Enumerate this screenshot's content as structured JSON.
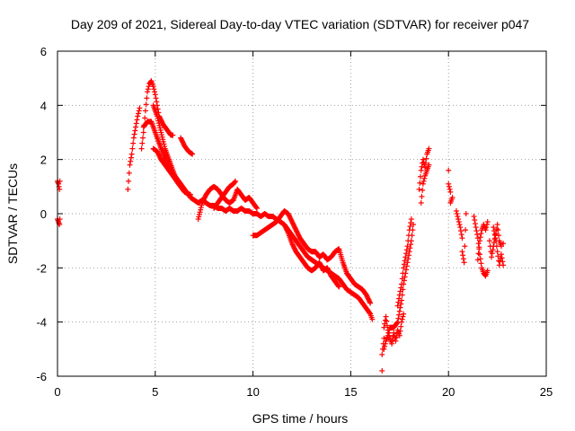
{
  "chart_data": {
    "type": "scatter",
    "title": "Day 209 of 2021, Sidereal Day-to-day VTEC variation (SDTVAR) for receiver p047",
    "xlabel": "GPS time / hours",
    "ylabel": "SDTVAR / TECUs",
    "xlim": [
      0,
      25
    ],
    "ylim": [
      -6,
      6
    ],
    "xticks": [
      0,
      5,
      10,
      15,
      20,
      25
    ],
    "yticks": [
      -6,
      -4,
      -2,
      0,
      2,
      4,
      6
    ],
    "grid": true,
    "marker": "+",
    "series_color": "#ff0000",
    "segments": [
      [
        [
          0.0,
          1.2
        ],
        [
          0.05,
          1.1
        ],
        [
          0.1,
          0.9
        ],
        [
          0.12,
          1.2
        ]
      ],
      [
        [
          0.0,
          -0.2
        ],
        [
          0.05,
          -0.3
        ],
        [
          0.1,
          -0.4
        ],
        [
          0.12,
          -0.2
        ]
      ],
      [
        [
          3.6,
          0.9
        ],
        [
          3.7,
          1.8
        ],
        [
          3.8,
          2.2
        ],
        [
          3.9,
          2.8
        ],
        [
          4.0,
          3.2
        ],
        [
          4.1,
          3.6
        ],
        [
          4.2,
          3.9
        ]
      ],
      [
        [
          4.3,
          2.4
        ],
        [
          4.4,
          3.0
        ],
        [
          4.5,
          3.8
        ],
        [
          4.6,
          4.5
        ],
        [
          4.7,
          4.8
        ],
        [
          4.8,
          4.9
        ],
        [
          4.9,
          4.7
        ],
        [
          5.0,
          4.4
        ],
        [
          5.1,
          4.0
        ],
        [
          5.2,
          3.6
        ],
        [
          5.4,
          3.3
        ],
        [
          5.6,
          3.1
        ],
        [
          5.8,
          2.9
        ],
        [
          5.9,
          2.9
        ]
      ],
      [
        [
          4.4,
          3.2
        ],
        [
          4.6,
          3.4
        ],
        [
          4.8,
          3.4
        ],
        [
          5.0,
          3.0
        ],
        [
          5.2,
          2.6
        ],
        [
          5.4,
          2.2
        ],
        [
          5.6,
          1.8
        ],
        [
          5.8,
          1.6
        ],
        [
          6.0,
          1.4
        ],
        [
          6.2,
          1.2
        ],
        [
          6.4,
          1.0
        ],
        [
          6.6,
          0.8
        ],
        [
          6.8,
          0.6
        ],
        [
          7.0,
          0.5
        ],
        [
          7.2,
          0.4
        ],
        [
          7.4,
          0.5
        ],
        [
          7.6,
          0.4
        ],
        [
          7.8,
          0.3
        ],
        [
          8.0,
          0.3
        ],
        [
          8.2,
          0.2
        ],
        [
          8.4,
          0.2
        ],
        [
          8.6,
          0.1
        ],
        [
          8.8,
          0.2
        ],
        [
          9.0,
          0.1
        ],
        [
          9.2,
          0.1
        ],
        [
          9.4,
          0.2
        ],
        [
          9.6,
          0.1
        ],
        [
          9.8,
          0.1
        ],
        [
          10.0,
          0.0
        ],
        [
          10.2,
          0.0
        ],
        [
          10.4,
          -0.1
        ],
        [
          10.6,
          0.0
        ],
        [
          10.8,
          -0.1
        ],
        [
          11.0,
          -0.1
        ],
        [
          11.2,
          -0.2
        ],
        [
          11.4,
          -0.3
        ],
        [
          11.6,
          -0.4
        ],
        [
          11.8,
          -0.6
        ],
        [
          12.0,
          -0.8
        ],
        [
          12.2,
          -1.0
        ],
        [
          12.4,
          -1.2
        ],
        [
          12.6,
          -1.4
        ],
        [
          12.8,
          -1.6
        ],
        [
          13.0,
          -1.7
        ],
        [
          13.2,
          -1.8
        ],
        [
          13.4,
          -1.9
        ],
        [
          13.6,
          -2.0
        ],
        [
          13.8,
          -2.1
        ],
        [
          14.0,
          -2.2
        ],
        [
          14.2,
          -2.3
        ],
        [
          14.4,
          -2.4
        ],
        [
          14.6,
          -2.6
        ],
        [
          14.8,
          -2.8
        ],
        [
          15.0,
          -2.9
        ],
        [
          15.2,
          -3.0
        ],
        [
          15.4,
          -3.1
        ],
        [
          15.6,
          -3.3
        ],
        [
          15.8,
          -3.5
        ],
        [
          16.0,
          -3.7
        ],
        [
          16.1,
          -3.9
        ]
      ],
      [
        [
          4.9,
          2.4
        ],
        [
          5.1,
          2.3
        ],
        [
          5.3,
          2.0
        ],
        [
          5.5,
          1.8
        ],
        [
          5.7,
          1.6
        ],
        [
          5.9,
          1.4
        ],
        [
          6.1,
          1.2
        ],
        [
          6.3,
          1.0
        ],
        [
          6.5,
          0.8
        ],
        [
          6.8,
          0.7
        ]
      ],
      [
        [
          4.9,
          4.0
        ],
        [
          5.1,
          3.6
        ],
        [
          5.3,
          3.0
        ],
        [
          5.5,
          2.4
        ],
        [
          5.7,
          2.0
        ],
        [
          5.9,
          1.6
        ],
        [
          6.1,
          1.2
        ],
        [
          6.3,
          1.0
        ]
      ],
      [
        [
          6.3,
          2.8
        ],
        [
          6.5,
          2.5
        ],
        [
          6.7,
          2.3
        ],
        [
          6.9,
          2.2
        ]
      ],
      [
        [
          7.2,
          -0.2
        ],
        [
          7.4,
          0.4
        ],
        [
          7.6,
          0.7
        ],
        [
          7.8,
          0.9
        ],
        [
          8.0,
          1.0
        ],
        [
          8.2,
          0.9
        ],
        [
          8.4,
          0.7
        ],
        [
          8.6,
          0.5
        ],
        [
          8.8,
          0.4
        ],
        [
          9.0,
          0.5
        ],
        [
          9.2,
          0.9
        ],
        [
          9.4,
          0.7
        ],
        [
          9.6,
          0.5
        ],
        [
          9.8,
          0.6
        ],
        [
          10.0,
          0.4
        ],
        [
          10.2,
          0.2
        ]
      ],
      [
        [
          8.0,
          0.2
        ],
        [
          8.2,
          0.4
        ],
        [
          8.4,
          0.6
        ],
        [
          8.6,
          0.8
        ],
        [
          8.8,
          1.0
        ],
        [
          9.0,
          1.1
        ],
        [
          9.1,
          1.2
        ]
      ],
      [
        [
          10.0,
          -0.8
        ],
        [
          10.2,
          -0.8
        ],
        [
          10.4,
          -0.7
        ],
        [
          10.6,
          -0.6
        ],
        [
          10.8,
          -0.5
        ],
        [
          11.0,
          -0.4
        ],
        [
          11.2,
          -0.3
        ],
        [
          11.4,
          -0.1
        ],
        [
          11.6,
          0.1
        ],
        [
          11.8,
          0.0
        ],
        [
          12.0,
          -0.3
        ],
        [
          12.2,
          -0.6
        ],
        [
          12.4,
          -0.9
        ],
        [
          12.6,
          -1.1
        ],
        [
          12.8,
          -1.3
        ],
        [
          13.0,
          -1.4
        ],
        [
          13.2,
          -1.4
        ],
        [
          13.4,
          -1.6
        ],
        [
          13.6,
          -1.5
        ],
        [
          13.8,
          -1.7
        ],
        [
          14.0,
          -1.6
        ],
        [
          14.2,
          -1.4
        ],
        [
          14.4,
          -1.3
        ],
        [
          14.6,
          -1.8
        ],
        [
          14.8,
          -2.2
        ],
        [
          15.0,
          -2.4
        ],
        [
          15.2,
          -2.6
        ],
        [
          15.4,
          -2.7
        ],
        [
          15.6,
          -2.8
        ],
        [
          15.8,
          -3.0
        ],
        [
          16.0,
          -3.3
        ]
      ],
      [
        [
          11.6,
          -0.4
        ],
        [
          11.8,
          -0.7
        ],
        [
          12.0,
          -1.1
        ],
        [
          12.2,
          -1.4
        ],
        [
          12.4,
          -1.6
        ],
        [
          12.6,
          -1.8
        ],
        [
          12.8,
          -2.0
        ],
        [
          13.0,
          -2.1
        ],
        [
          13.2,
          -2.0
        ],
        [
          13.4,
          -1.8
        ],
        [
          13.6,
          -2.1
        ],
        [
          13.8,
          -2.0
        ],
        [
          14.0,
          -2.3
        ],
        [
          14.2,
          -2.5
        ],
        [
          14.4,
          -2.7
        ]
      ],
      [
        [
          16.6,
          -5.8
        ],
        [
          16.6,
          -5.2
        ],
        [
          16.7,
          -4.6
        ],
        [
          16.7,
          -4.2
        ],
        [
          16.8,
          -3.8
        ],
        [
          16.9,
          -4.3
        ],
        [
          17.0,
          -4.6
        ],
        [
          17.1,
          -4.8
        ],
        [
          17.2,
          -4.4
        ],
        [
          17.3,
          -4.7
        ],
        [
          17.4,
          -4.3
        ],
        [
          17.5,
          -4.5
        ],
        [
          17.6,
          -4.0
        ],
        [
          17.7,
          -3.7
        ]
      ],
      [
        [
          16.7,
          -5.0
        ],
        [
          16.8,
          -4.7
        ],
        [
          16.9,
          -4.5
        ],
        [
          17.0,
          -4.2
        ],
        [
          17.2,
          -4.2
        ],
        [
          17.4,
          -4.0
        ],
        [
          17.5,
          -3.6
        ],
        [
          17.6,
          -3.2
        ],
        [
          17.7,
          -2.6
        ],
        [
          17.8,
          -2.2
        ],
        [
          17.9,
          -1.8
        ],
        [
          18.0,
          -1.4
        ],
        [
          18.1,
          -1.0
        ],
        [
          18.2,
          -0.4
        ]
      ],
      [
        [
          17.4,
          -3.4
        ],
        [
          17.5,
          -3.0
        ],
        [
          17.6,
          -2.6
        ],
        [
          17.7,
          -2.0
        ],
        [
          17.8,
          -1.6
        ],
        [
          17.9,
          -1.2
        ],
        [
          18.0,
          -0.6
        ],
        [
          18.1,
          -0.2
        ]
      ],
      [
        [
          18.5,
          0.9
        ],
        [
          18.6,
          1.6
        ],
        [
          18.7,
          2.0
        ],
        [
          18.8,
          1.7
        ],
        [
          18.9,
          2.2
        ],
        [
          19.0,
          2.4
        ]
      ],
      [
        [
          18.6,
          0.4
        ],
        [
          18.7,
          1.1
        ],
        [
          18.8,
          1.4
        ],
        [
          18.9,
          1.6
        ],
        [
          19.0,
          1.8
        ]
      ],
      [
        [
          20.0,
          1.6
        ],
        [
          20.0,
          1.1
        ],
        [
          20.1,
          0.8
        ],
        [
          20.1,
          0.4
        ],
        [
          20.2,
          0.6
        ]
      ],
      [
        [
          20.4,
          0.1
        ],
        [
          20.5,
          -0.2
        ],
        [
          20.6,
          -0.5
        ],
        [
          20.7,
          -0.9
        ],
        [
          20.7,
          -1.4
        ],
        [
          20.8,
          -1.8
        ],
        [
          20.9,
          0.0
        ]
      ],
      [
        [
          21.3,
          -0.1
        ],
        [
          21.4,
          -0.5
        ],
        [
          21.5,
          -0.9
        ],
        [
          21.6,
          -1.5
        ],
        [
          21.7,
          -2.0
        ],
        [
          21.8,
          -2.2
        ],
        [
          21.9,
          -2.3
        ],
        [
          22.0,
          -2.1
        ]
      ],
      [
        [
          21.5,
          -1.7
        ],
        [
          21.6,
          -1.0
        ],
        [
          21.7,
          -0.6
        ],
        [
          21.8,
          -0.4
        ],
        [
          21.9,
          -0.6
        ],
        [
          22.0,
          -0.3
        ]
      ],
      [
        [
          22.1,
          -1.0
        ],
        [
          22.2,
          -1.6
        ],
        [
          22.3,
          -1.2
        ],
        [
          22.4,
          -0.8
        ],
        [
          22.5,
          -1.4
        ],
        [
          22.6,
          -1.9
        ],
        [
          22.7,
          -1.5
        ],
        [
          22.8,
          -1.9
        ],
        [
          22.8,
          -1.1
        ]
      ],
      [
        [
          22.3,
          -0.5
        ],
        [
          22.4,
          -0.9
        ],
        [
          22.5,
          -0.4
        ],
        [
          22.6,
          -1.0
        ],
        [
          22.7,
          -1.2
        ]
      ]
    ]
  }
}
